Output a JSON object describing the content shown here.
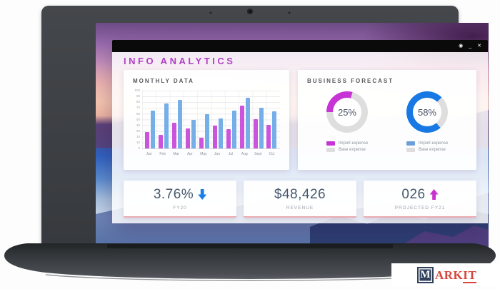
{
  "window": {
    "title": "INFO ANALYTICS",
    "controls": {
      "gear": "◉",
      "minimize": "_",
      "close": "✕"
    }
  },
  "monthly": {
    "heading": "MONTHLY DATA"
  },
  "forecast": {
    "heading": "BUSINESS FORECAST",
    "track_color": "#dedede",
    "donuts": [
      {
        "percent_label": "25%",
        "color": "#c634d6",
        "arc_from": 270,
        "arc_sweep": 105,
        "legend": [
          {
            "label": "Import expense",
            "color": "#c634d6"
          },
          {
            "label": "Base expense",
            "color": "#dedede"
          }
        ]
      },
      {
        "percent_label": "58%",
        "color": "#1878e4",
        "arc_from": 140,
        "arc_sweep": 265,
        "legend": [
          {
            "label": "Import expense",
            "color": "#6f9fd8"
          },
          {
            "label": "Base expense",
            "color": "#dedede"
          }
        ]
      }
    ]
  },
  "stats": [
    {
      "value": "3.76%",
      "label": "FY20",
      "arrow": "down",
      "arrow_color": "#1a7fe8"
    },
    {
      "value": "$48,426",
      "label": "REVENUE",
      "arrow": "none",
      "arrow_color": ""
    },
    {
      "value": "026",
      "label": "PROJECTED FY21",
      "arrow": "up",
      "arrow_color": "#cc2fd0"
    }
  ],
  "chart_data": {
    "type": "bar",
    "title": "MONTHLY DATA",
    "categories": [
      "Jan",
      "Feb",
      "Mar",
      "Apr",
      "May",
      "Jun",
      "Jul",
      "Aug",
      "Sept",
      "Oct"
    ],
    "series": [
      {
        "name": "magenta",
        "color": "#cb54dd",
        "values": [
          29,
          24,
          45,
          35,
          19,
          39,
          33,
          74,
          51,
          41
        ]
      },
      {
        "name": "blue",
        "color": "#76afe8",
        "values": [
          66,
          78,
          84,
          50,
          59,
          52,
          65,
          88,
          71,
          64
        ]
      }
    ],
    "xlabel": "",
    "ylabel": "",
    "ylim": [
      0,
      100
    ],
    "yticks": [
      "100",
      "90",
      "80",
      "70",
      "60",
      "50",
      "40",
      "30",
      "20",
      "10",
      "0"
    ],
    "grid": "on",
    "legend_position": "none"
  },
  "donut_chart_data": [
    {
      "type": "pie",
      "title": "Import vs Base expense",
      "labels": [
        "Import expense",
        "Base expense"
      ],
      "values": [
        25,
        75
      ]
    },
    {
      "type": "pie",
      "title": "Import vs Base expense",
      "labels": [
        "Import expense",
        "Base expense"
      ],
      "values": [
        58,
        42
      ]
    }
  ],
  "logo": {
    "m": "M",
    "rest": "ARK",
    "underlined": "IT"
  }
}
